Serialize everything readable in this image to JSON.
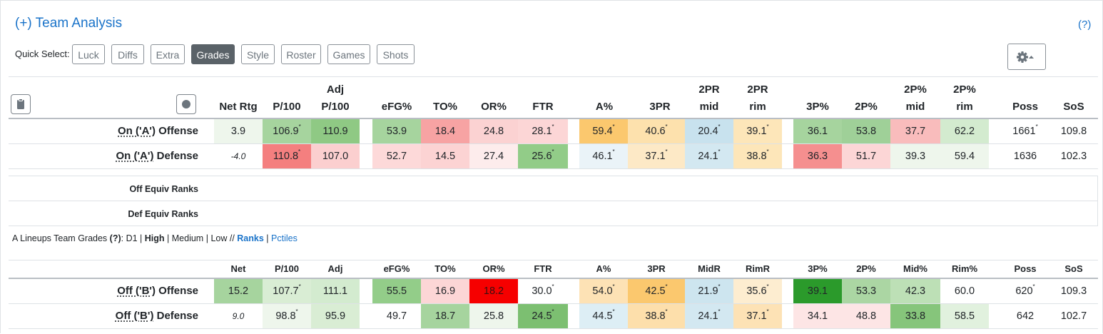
{
  "title": "(+) Team Analysis",
  "help_link": "(?)",
  "quick_select": {
    "label": "Quick Select:",
    "buttons": [
      "Luck",
      "Diffs",
      "Extra",
      "Grades",
      "Style",
      "Roster",
      "Games",
      "Shots"
    ],
    "active": "Grades"
  },
  "header1": {
    "net": "Net Rtg",
    "p100": "P/100",
    "adj_top": "Adj",
    "adj_bottom": "P/100",
    "efg": "eFG%",
    "to": "TO%",
    "or": "OR%",
    "ftr": "FTR",
    "a": "A%",
    "tpr": "3PR",
    "tprmid_top": "2PR",
    "tprmid_bottom": "mid",
    "tprrim_top": "2PR",
    "tprrim_bottom": "rim",
    "tp": "3P%",
    "twop": "2P%",
    "twopmid_top": "2P%",
    "twopmid_bottom": "mid",
    "twoprim_top": "2P%",
    "twoprim_bottom": "rim",
    "poss": "Poss",
    "sos": "SoS"
  },
  "header2": [
    "Net",
    "P/100",
    "Adj",
    "eFG%",
    "TO%",
    "OR%",
    "FTR",
    "A%",
    "3PR",
    "MidR",
    "RimR",
    "3P%",
    "2P%",
    "Mid%",
    "Rim%",
    "Poss",
    "SoS"
  ],
  "colors": {
    "accent": "#1a73c9",
    "active_button": "#5a6268"
  },
  "rows_a": [
    {
      "prefix": "On ('A')",
      "suffix": " Offense",
      "cells": [
        {
          "v": "3.9",
          "bg": "#eef6ec"
        },
        {
          "v": "106.9",
          "bg": "#a6d49e",
          "s": true
        },
        {
          "v": "110.9",
          "bg": "#8fc984"
        },
        {
          "v": "53.9",
          "bg": "#a6d49e"
        },
        {
          "v": "18.4",
          "bg": "#f7a3a3"
        },
        {
          "v": "24.8",
          "bg": "#fbd2d2"
        },
        {
          "v": "28.1",
          "bg": "#fcd6d6",
          "s": true
        },
        {
          "v": "59.4",
          "bg": "#fbc86e",
          "s": true
        },
        {
          "v": "40.6",
          "bg": "#fde1ad",
          "s": true
        },
        {
          "v": "20.4",
          "bg": "#c8e2ee",
          "s": true
        },
        {
          "v": "39.1",
          "bg": "#fde6b9",
          "s": true
        },
        {
          "v": "36.1",
          "bg": "#a6d49e"
        },
        {
          "v": "53.8",
          "bg": "#9fd098"
        },
        {
          "v": "37.7",
          "bg": "#f9bcbc"
        },
        {
          "v": "62.2",
          "bg": "#d3ebcf"
        },
        {
          "v": "1661",
          "bg": "#ffffff",
          "s": true
        },
        {
          "v": "109.8",
          "bg": "#ffffff"
        }
      ]
    },
    {
      "prefix": "On ('A')",
      "suffix": " Defense",
      "cells": [
        {
          "v": "-4.0",
          "bg": "#ffffff",
          "ital": true
        },
        {
          "v": "110.8",
          "bg": "#f47f7f",
          "s": true
        },
        {
          "v": "107.0",
          "bg": "#fbcfcf"
        },
        {
          "v": "52.7",
          "bg": "#fdd9d9"
        },
        {
          "v": "14.5",
          "bg": "#fcd3d3"
        },
        {
          "v": "27.4",
          "bg": "#fdecec"
        },
        {
          "v": "25.6",
          "bg": "#92cc88",
          "s": true
        },
        {
          "v": "46.1",
          "bg": "#eaf3f8",
          "s": true
        },
        {
          "v": "37.1",
          "bg": "#fde9c6",
          "s": true
        },
        {
          "v": "24.1",
          "bg": "#d3e8f1",
          "s": true
        },
        {
          "v": "38.8",
          "bg": "#fde6b9",
          "s": true
        },
        {
          "v": "36.3",
          "bg": "#f58f8f"
        },
        {
          "v": "51.7",
          "bg": "#fcd6d6"
        },
        {
          "v": "39.3",
          "bg": "#eef6ec"
        },
        {
          "v": "59.4",
          "bg": "#eef6ec"
        },
        {
          "v": "1636",
          "bg": "#ffffff"
        },
        {
          "v": "102.3",
          "bg": "#ffffff"
        }
      ]
    }
  ],
  "equiv_ranks": [
    "Off Equiv Ranks",
    "Def Equiv Ranks"
  ],
  "grades_line": {
    "prefix": "A Lineups Team Grades ",
    "help": "(?)",
    "colon": ": ",
    "d1": "D1",
    "sep": " | ",
    "high": "High",
    "medium": "Medium",
    "low": "Low",
    "slashes": " // ",
    "ranks": "Ranks",
    "pctiles": "Pctiles"
  },
  "rows_b": [
    {
      "prefix": "Off ('B')",
      "suffix": " Offense",
      "cells": [
        {
          "v": "15.2",
          "bg": "#a6d49e"
        },
        {
          "v": "107.7",
          "bg": "#d9edd4",
          "s": true
        },
        {
          "v": "111.1",
          "bg": "#d3ebcf"
        },
        {
          "v": "55.5",
          "bg": "#93cd89"
        },
        {
          "v": "16.9",
          "bg": "#fcd6d6"
        },
        {
          "v": "18.2",
          "bg": "#f60000",
          "red": true
        },
        {
          "v": "30.0",
          "bg": "#ffffff",
          "s": true
        },
        {
          "v": "54.0",
          "bg": "#fde2b5",
          "s": true
        },
        {
          "v": "42.5",
          "bg": "#fbc86e",
          "s": true
        },
        {
          "v": "21.9",
          "bg": "#cde5ef",
          "s": true
        },
        {
          "v": "35.6",
          "bg": "#fdedd0",
          "s": true
        },
        {
          "v": "39.1",
          "bg": "#2b9a2b"
        },
        {
          "v": "53.3",
          "bg": "#abd6a3"
        },
        {
          "v": "42.3",
          "bg": "#bde0b6"
        },
        {
          "v": "60.0",
          "bg": "#ffffff"
        },
        {
          "v": "620",
          "bg": "#ffffff",
          "s": true
        },
        {
          "v": "109.3",
          "bg": "#ffffff"
        }
      ]
    },
    {
      "prefix": "Off ('B')",
      "suffix": " Defense",
      "cells": [
        {
          "v": "9.0",
          "bg": "#ffffff",
          "ital": true
        },
        {
          "v": "98.8",
          "bg": "#eef6ec",
          "s": true
        },
        {
          "v": "95.9",
          "bg": "#d9edd4"
        },
        {
          "v": "49.7",
          "bg": "#ffffff"
        },
        {
          "v": "18.7",
          "bg": "#a6d49e"
        },
        {
          "v": "25.8",
          "bg": "#eef6ec"
        },
        {
          "v": "24.5",
          "bg": "#7cbf71",
          "s": true
        },
        {
          "v": "44.5",
          "bg": "#ddeef5",
          "s": true
        },
        {
          "v": "38.8",
          "bg": "#fddfab",
          "s": true
        },
        {
          "v": "24.1",
          "bg": "#d3e8f1",
          "s": true
        },
        {
          "v": "37.1",
          "bg": "#fde2b5",
          "s": true
        },
        {
          "v": "34.1",
          "bg": "#fde5e5"
        },
        {
          "v": "48.8",
          "bg": "#fde5e5"
        },
        {
          "v": "33.8",
          "bg": "#86c57b"
        },
        {
          "v": "58.5",
          "bg": "#e1f1de"
        },
        {
          "v": "642",
          "bg": "#ffffff"
        },
        {
          "v": "102.7",
          "bg": "#ffffff"
        }
      ]
    }
  ]
}
